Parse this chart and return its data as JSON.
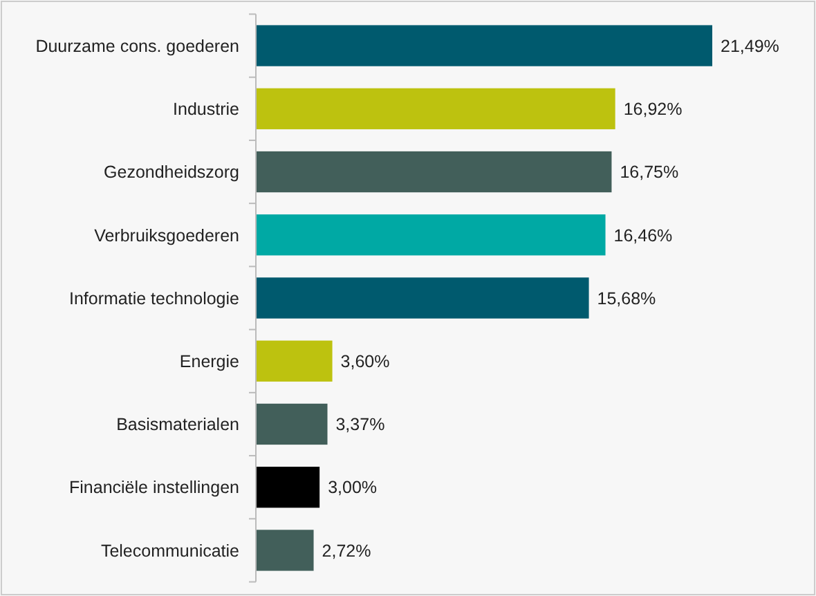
{
  "chart_data": {
    "type": "bar",
    "orientation": "horizontal",
    "categories": [
      "Duurzame cons. goederen",
      "Industrie",
      "Gezondheidszorg",
      "Verbruiksgoederen",
      "Informatie technologie",
      "Energie",
      "Basismaterialen",
      "Financiële instellingen",
      "Telecommunicatie"
    ],
    "values": [
      21.49,
      16.92,
      16.75,
      16.46,
      15.68,
      3.6,
      3.37,
      3.0,
      2.72
    ],
    "colors": [
      "#005a6e",
      "#bdc20f",
      "#425f5a",
      "#00a9a4",
      "#005a6e",
      "#bdc20f",
      "#425f5a",
      "#000000",
      "#425f5a"
    ],
    "value_labels": [
      "21,49%",
      "16,92%",
      "16,75%",
      "16,46%",
      "15,68%",
      "3,60%",
      "3,37%",
      "3,00%",
      "2,72%"
    ]
  }
}
